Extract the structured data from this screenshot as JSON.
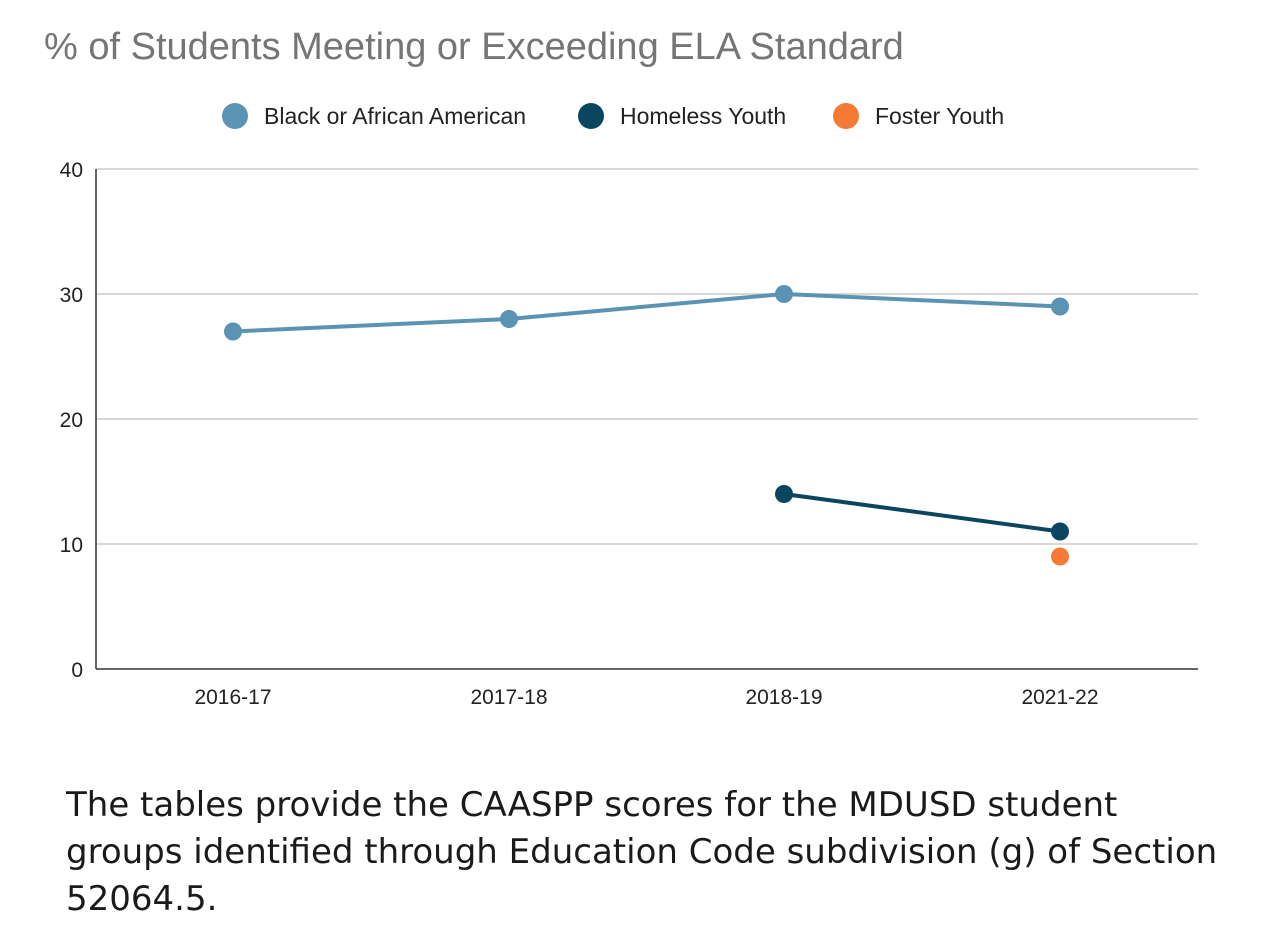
{
  "chart_data": {
    "type": "line",
    "title": "% of Students Meeting or Exceeding ELA Standard",
    "categories": [
      "2016-17",
      "2017-18",
      "2018-19",
      "2021-22"
    ],
    "ylim": [
      0,
      40
    ],
    "yticks": [
      0,
      10,
      20,
      30,
      40
    ],
    "grid": true,
    "legend_position": "top",
    "series": [
      {
        "name": "Black or African American",
        "color": "#5b93b4",
        "values": [
          27,
          28,
          30,
          29
        ]
      },
      {
        "name": "Homeless Youth",
        "color": "#0b4660",
        "values": [
          null,
          null,
          14,
          11
        ]
      },
      {
        "name": "Foster Youth",
        "color": "#f47a36",
        "values": [
          null,
          null,
          null,
          9
        ]
      }
    ]
  },
  "caption": "The tables provide the CAASPP scores for the MDUSD student groups identified through Education Code subdivision (g) of Section 52064.5."
}
